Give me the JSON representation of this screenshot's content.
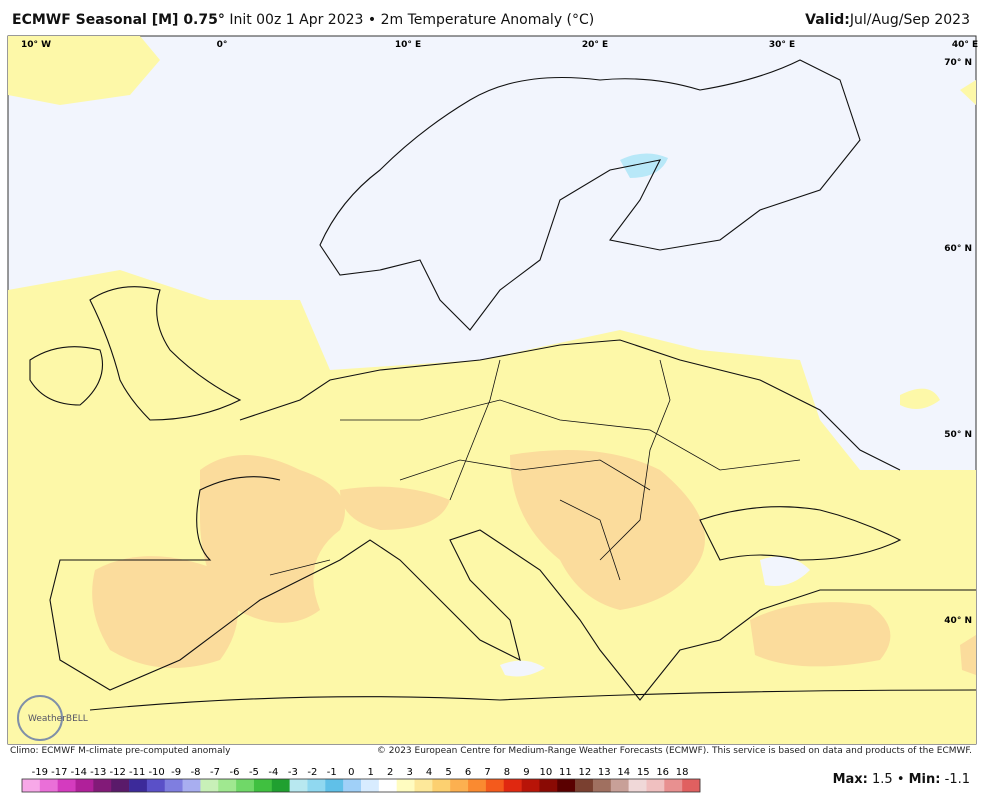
{
  "header": {
    "title_bold": "ECMWF Seasonal [M] 0.75°",
    "title_rest": "Init 00z 1 Apr 2023 • 2m Temperature Anomaly (°C)",
    "valid_label": "Valid:",
    "valid_value": "Jul/Aug/Sep 2023"
  },
  "map": {
    "lon_labels": [
      "10° W",
      "0°",
      "10° E",
      "20° E",
      "30° E",
      "40° E"
    ],
    "lat_labels": [
      "70° N",
      "60° N",
      "50° N",
      "40° N"
    ],
    "logo": "WeatherBELL"
  },
  "footer": {
    "climo": "Climo: ECMWF M-climate pre-computed anomaly",
    "copyright": "© 2023 European Centre for Medium-Range Weather Forecasts (ECMWF). This service is based on data and products of the ECMWF."
  },
  "colorbar": {
    "labels": [
      -19,
      -17,
      -14,
      -13,
      -12,
      -11,
      -10,
      -9,
      -8,
      -7,
      -6,
      -5,
      -4,
      -3,
      -2,
      -1,
      0,
      1,
      2,
      3,
      4,
      5,
      6,
      7,
      8,
      9,
      10,
      11,
      12,
      13,
      14,
      15,
      16,
      18
    ],
    "colors": [
      "#f7a8e8",
      "#ea6fd8",
      "#d43bbf",
      "#b0209a",
      "#821a78",
      "#5a1a6a",
      "#3c2a9a",
      "#5a50c8",
      "#7f7ee0",
      "#a8aef0",
      "#c8f0b8",
      "#a0e890",
      "#70d868",
      "#40c040",
      "#20a030",
      "#b8e8f0",
      "#90d8f0",
      "#60c0e8",
      "#a0d0f8",
      "#d8ecff",
      "#ffffff",
      "#fffcc0",
      "#fde89a",
      "#fcd070",
      "#fcb050",
      "#fa8a30",
      "#f45a1c",
      "#e02810",
      "#b81408",
      "#8a0a04",
      "#5a0000",
      "#7a4030",
      "#a07060",
      "#c8a098",
      "#f0d8d8",
      "#f0c0c0",
      "#e89090",
      "#e06060"
    ]
  },
  "stats": {
    "max_label": "Max:",
    "max": 1.5,
    "min_label": "Min:",
    "min": -1.1
  }
}
